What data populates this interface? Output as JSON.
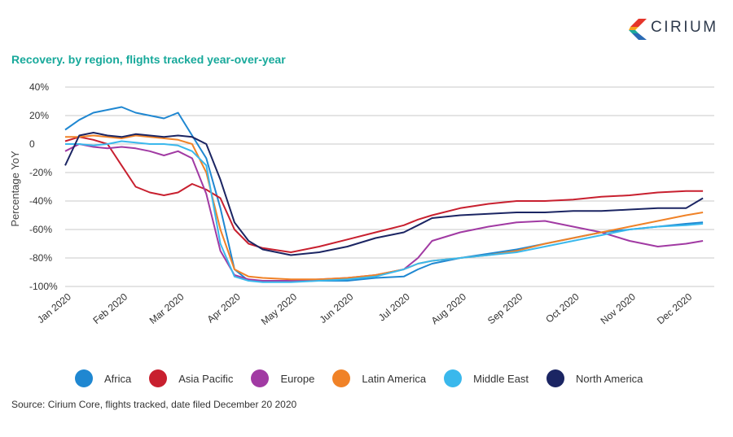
{
  "brand": {
    "name": "CIRIUM",
    "logo_colors": [
      "#e5352b",
      "#f4a21d",
      "#1aa99c",
      "#2a6ab4",
      "#7a3b8f"
    ]
  },
  "chart_data": {
    "type": "line",
    "title": "Recovery. by region, flights tracked year-over-year",
    "ylabel": "Percentage YoY",
    "xlabel": "",
    "ylim": [
      -100,
      40
    ],
    "yticks": [
      40,
      20,
      0,
      -20,
      -40,
      -60,
      -80,
      -100
    ],
    "ytick_labels": [
      "40%",
      "20%",
      "0",
      "-20%",
      "-40%",
      "-60%",
      "-80%",
      "-100%"
    ],
    "x_unit": "months since 2020-01-01",
    "xlim": [
      0,
      11.5
    ],
    "xticks": [
      0,
      1,
      2,
      3,
      4,
      5,
      6,
      7,
      8,
      9,
      10,
      11
    ],
    "xtick_labels": [
      "Jan 2020",
      "Feb 2020",
      "Mar 2020",
      "Apr 2020",
      "May 2020",
      "Jun 2020",
      "Jul 2020",
      "Aug 2020",
      "Sep 2020",
      "Oct 2020",
      "Nov 2020",
      "Dec 2020"
    ],
    "grid": true,
    "legend_position": "bottom",
    "series": [
      {
        "name": "Africa",
        "color": "#1f87d1",
        "x": [
          0,
          0.25,
          0.5,
          0.75,
          1,
          1.25,
          1.5,
          1.75,
          2,
          2.25,
          2.5,
          2.75,
          3,
          3.25,
          3.5,
          4,
          4.5,
          5,
          5.5,
          6,
          6.25,
          6.5,
          7,
          7.5,
          8,
          8.5,
          9,
          9.5,
          10,
          10.5,
          11,
          11.3
        ],
        "y": [
          10,
          17,
          22,
          24,
          26,
          22,
          20,
          18,
          22,
          6,
          -10,
          -45,
          -88,
          -96,
          -96,
          -96,
          -96,
          -96,
          -94,
          -93,
          -88,
          -84,
          -80,
          -77,
          -74,
          -70,
          -66,
          -62,
          -60,
          -58,
          -56,
          -55
        ]
      },
      {
        "name": "Asia Pacific",
        "color": "#c8202f",
        "x": [
          0,
          0.25,
          0.5,
          0.75,
          1,
          1.25,
          1.5,
          1.75,
          2,
          2.25,
          2.5,
          2.75,
          3,
          3.25,
          3.5,
          4,
          4.5,
          5,
          5.5,
          6,
          6.25,
          6.5,
          7,
          7.5,
          8,
          8.5,
          9,
          9.5,
          10,
          10.5,
          11,
          11.3
        ],
        "y": [
          2,
          5,
          3,
          0,
          -15,
          -30,
          -34,
          -36,
          -34,
          -28,
          -32,
          -38,
          -60,
          -70,
          -73,
          -76,
          -72,
          -67,
          -62,
          -57,
          -53,
          -50,
          -45,
          -42,
          -40,
          -40,
          -39,
          -37,
          -36,
          -34,
          -33,
          -33
        ]
      },
      {
        "name": "Europe",
        "color": "#a13aa3",
        "x": [
          0,
          0.25,
          0.5,
          0.75,
          1,
          1.25,
          1.5,
          1.75,
          2,
          2.25,
          2.5,
          2.75,
          3,
          3.25,
          3.5,
          4,
          4.5,
          5,
          5.5,
          6,
          6.25,
          6.5,
          7,
          7.5,
          8,
          8.5,
          9,
          9.5,
          10,
          10.5,
          11,
          11.3
        ],
        "y": [
          -5,
          0,
          -2,
          -3,
          -2,
          -3,
          -5,
          -8,
          -5,
          -10,
          -35,
          -75,
          -92,
          -95,
          -96,
          -96,
          -95,
          -94,
          -92,
          -88,
          -80,
          -68,
          -62,
          -58,
          -55,
          -54,
          -58,
          -62,
          -68,
          -72,
          -70,
          -68
        ]
      },
      {
        "name": "Latin America",
        "color": "#f08227",
        "x": [
          0,
          0.25,
          0.5,
          0.75,
          1,
          1.25,
          1.5,
          1.75,
          2,
          2.25,
          2.5,
          2.75,
          3,
          3.25,
          3.5,
          4,
          4.5,
          5,
          5.5,
          6,
          6.25,
          6.5,
          7,
          7.5,
          8,
          8.5,
          9,
          9.5,
          10,
          10.5,
          11,
          11.3
        ],
        "y": [
          5,
          5,
          6,
          5,
          4,
          6,
          5,
          4,
          3,
          0,
          -20,
          -60,
          -88,
          -93,
          -94,
          -95,
          -95,
          -94,
          -92,
          -88,
          -84,
          -82,
          -80,
          -78,
          -75,
          -70,
          -66,
          -62,
          -58,
          -54,
          -50,
          -48
        ]
      },
      {
        "name": "Middle East",
        "color": "#3ab8ec",
        "x": [
          0,
          0.25,
          0.5,
          0.75,
          1,
          1.25,
          1.5,
          1.75,
          2,
          2.25,
          2.5,
          2.75,
          3,
          3.25,
          3.5,
          4,
          4.5,
          5,
          5.5,
          6,
          6.25,
          6.5,
          7,
          7.5,
          8,
          8.5,
          9,
          9.5,
          10,
          10.5,
          11,
          11.3
        ],
        "y": [
          0,
          0,
          -1,
          0,
          2,
          1,
          0,
          0,
          -1,
          -5,
          -15,
          -70,
          -93,
          -96,
          -97,
          -97,
          -96,
          -95,
          -93,
          -88,
          -84,
          -82,
          -80,
          -78,
          -76,
          -72,
          -68,
          -64,
          -60,
          -58,
          -57,
          -56
        ]
      },
      {
        "name": "North America",
        "color": "#1b2563",
        "x": [
          0,
          0.25,
          0.5,
          0.75,
          1,
          1.25,
          1.5,
          1.75,
          2,
          2.25,
          2.5,
          2.75,
          3,
          3.25,
          3.5,
          4,
          4.5,
          5,
          5.5,
          6,
          6.25,
          6.5,
          7,
          7.5,
          8,
          8.5,
          9,
          9.5,
          10,
          10.5,
          11,
          11.3
        ],
        "y": [
          -15,
          6,
          8,
          6,
          5,
          7,
          6,
          5,
          6,
          5,
          0,
          -25,
          -55,
          -68,
          -74,
          -78,
          -76,
          -72,
          -66,
          -62,
          -57,
          -52,
          -50,
          -49,
          -48,
          -48,
          -47,
          -47,
          -46,
          -45,
          -45,
          -38
        ]
      }
    ]
  },
  "source": "Source: Cirium Core, flights tracked, date filed December 20 2020"
}
